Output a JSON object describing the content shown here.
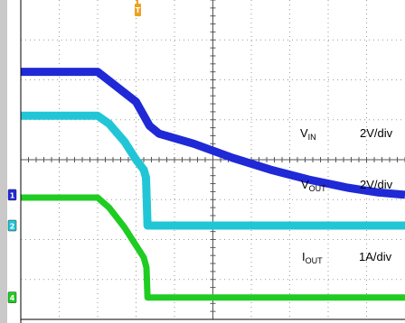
{
  "chart_data": {
    "type": "line",
    "grid": true,
    "xlim": [
      0,
      10
    ],
    "ylim": [
      0,
      8
    ],
    "trigger_marker": "T",
    "series": [
      {
        "name": "VIN",
        "label_main": "V",
        "label_sub": "IN",
        "scale": "2V/div",
        "color": "#1f29d6",
        "channel": "1",
        "channel_color": "#1f29d6",
        "x": [
          0,
          2.0,
          3.0,
          3.35,
          3.6,
          4.5,
          5.5,
          6.5,
          7.5,
          8.5,
          9.3,
          10
        ],
        "y": [
          6.2,
          6.2,
          5.45,
          4.85,
          4.65,
          4.4,
          4.05,
          3.75,
          3.5,
          3.3,
          3.18,
          3.12
        ]
      },
      {
        "name": "VOUT",
        "label_main": "V",
        "label_sub": "OUT",
        "scale": "2V/div",
        "color": "#21c6d6",
        "channel": "2",
        "channel_color": "#21c6d6",
        "x": [
          0,
          2.0,
          2.3,
          2.7,
          3.0,
          3.2,
          3.26,
          3.3,
          10
        ],
        "y": [
          5.1,
          5.1,
          4.9,
          4.45,
          4.0,
          3.75,
          3.55,
          2.35,
          2.35
        ]
      },
      {
        "name": "IOUT",
        "label_main": "I",
        "label_sub": "OUT",
        "scale": "1A/div",
        "color": "#1fcc22",
        "channel": "4",
        "channel_color": "#1fcc22",
        "x": [
          0,
          2.0,
          2.3,
          2.7,
          3.0,
          3.2,
          3.27,
          3.3,
          10
        ],
        "y": [
          3.05,
          3.05,
          2.8,
          2.3,
          1.85,
          1.55,
          1.3,
          0.55,
          0.55
        ]
      }
    ]
  }
}
